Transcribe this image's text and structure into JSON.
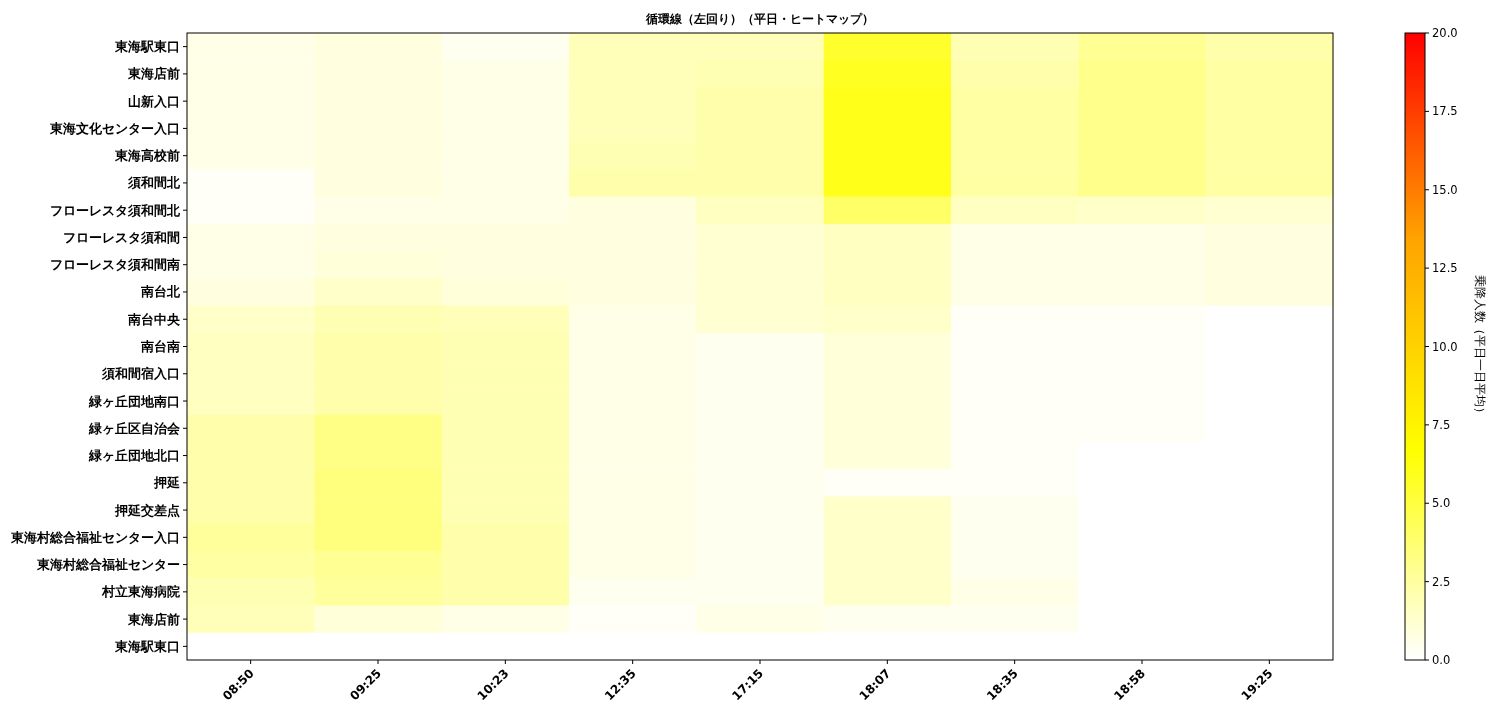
{
  "chart_data": {
    "type": "heatmap",
    "title": "循環線（左回り）（平日・ヒートマップ）",
    "clabel": "乗降人数（平日一日平均）",
    "categories": [
      "08:50",
      "09:25",
      "10:23",
      "12:35",
      "17:15",
      "18:07",
      "18:35",
      "18:58",
      "19:25"
    ],
    "y_categories": [
      "東海駅東口",
      "東海店前",
      "山新入口",
      "東海文化センター入口",
      "東海高校前",
      "須和間北",
      "フローレスタ須和間北",
      "フローレスタ須和間",
      "フローレスタ須和間南",
      "南台北",
      "南台中央",
      "南台南",
      "須和間宿入口",
      "緑ヶ丘団地南口",
      "緑ヶ丘区自治会",
      "緑ヶ丘団地北口",
      "押延",
      "押延交差点",
      "東海村総合福祉センター入口",
      "東海村総合福祉センター",
      "村立東海病院",
      "東海店前",
      "東海駅東口"
    ],
    "cells": [
      [
        0.6,
        0.8,
        0.4,
        1.8,
        1.8,
        5.5,
        2.0,
        2.8,
        2.2
      ],
      [
        0.6,
        0.8,
        0.6,
        1.8,
        2.0,
        5.8,
        2.2,
        3.0,
        2.4
      ],
      [
        0.6,
        0.8,
        0.6,
        1.8,
        2.2,
        6.0,
        2.4,
        3.0,
        2.4
      ],
      [
        0.6,
        0.8,
        0.6,
        1.8,
        2.2,
        6.0,
        2.4,
        3.0,
        2.4
      ],
      [
        0.6,
        0.8,
        0.6,
        2.0,
        2.2,
        6.0,
        2.4,
        3.0,
        2.4
      ],
      [
        0.2,
        0.8,
        0.6,
        2.2,
        2.2,
        6.0,
        2.4,
        3.0,
        2.4
      ],
      [
        0.2,
        0.6,
        0.6,
        0.8,
        1.6,
        4.0,
        1.6,
        1.4,
        1.2
      ],
      [
        0.6,
        0.8,
        0.8,
        0.8,
        1.2,
        1.6,
        0.6,
        0.6,
        0.8
      ],
      [
        0.6,
        1.0,
        0.8,
        0.8,
        1.2,
        1.6,
        0.6,
        0.6,
        0.8
      ],
      [
        0.8,
        1.4,
        1.0,
        0.8,
        1.2,
        1.6,
        0.6,
        0.6,
        0.8
      ],
      [
        1.4,
        2.0,
        1.8,
        0.6,
        1.2,
        1.4,
        0.2,
        0.2,
        0.0
      ],
      [
        1.6,
        2.2,
        2.0,
        0.6,
        0.4,
        1.0,
        0.2,
        0.2,
        0.0
      ],
      [
        1.6,
        2.2,
        2.0,
        0.6,
        0.4,
        1.0,
        0.2,
        0.2,
        0.0
      ],
      [
        1.6,
        2.2,
        2.0,
        0.6,
        0.4,
        1.0,
        0.2,
        0.2,
        0.0
      ],
      [
        2.2,
        3.2,
        2.0,
        0.6,
        0.4,
        1.0,
        0.2,
        0.2,
        0.0
      ],
      [
        2.2,
        3.2,
        2.0,
        0.6,
        0.4,
        1.0,
        0.2,
        0.0,
        0.0
      ],
      [
        2.2,
        3.4,
        2.0,
        0.6,
        0.4,
        0.2,
        0.2,
        0.0,
        0.0
      ],
      [
        2.2,
        3.4,
        2.0,
        0.6,
        0.4,
        1.4,
        0.4,
        0.0,
        0.0
      ],
      [
        2.6,
        3.4,
        2.2,
        0.6,
        0.4,
        1.4,
        0.4,
        0.0,
        0.0
      ],
      [
        2.4,
        2.8,
        2.2,
        0.6,
        0.4,
        1.4,
        0.4,
        0.0,
        0.0
      ],
      [
        2.0,
        2.6,
        2.2,
        0.4,
        0.4,
        1.4,
        0.6,
        0.0,
        0.0
      ],
      [
        1.8,
        1.0,
        0.6,
        0.2,
        0.6,
        0.4,
        0.4,
        0.0,
        0.0
      ],
      [
        0,
        0,
        0,
        0,
        0,
        0,
        0,
        0,
        0
      ]
    ],
    "clim": [
      0,
      20
    ],
    "cticks": [
      {
        "value": 0,
        "label": "0.0"
      },
      {
        "value": 2.5,
        "label": "2.5"
      },
      {
        "value": 5,
        "label": "5.0"
      },
      {
        "value": 7.5,
        "label": "7.5"
      },
      {
        "value": 10,
        "label": "10.0"
      },
      {
        "value": 12.5,
        "label": "12.5"
      },
      {
        "value": 15,
        "label": "15.0"
      },
      {
        "value": 17.5,
        "label": "17.5"
      },
      {
        "value": 20,
        "label": "20.0"
      }
    ]
  }
}
